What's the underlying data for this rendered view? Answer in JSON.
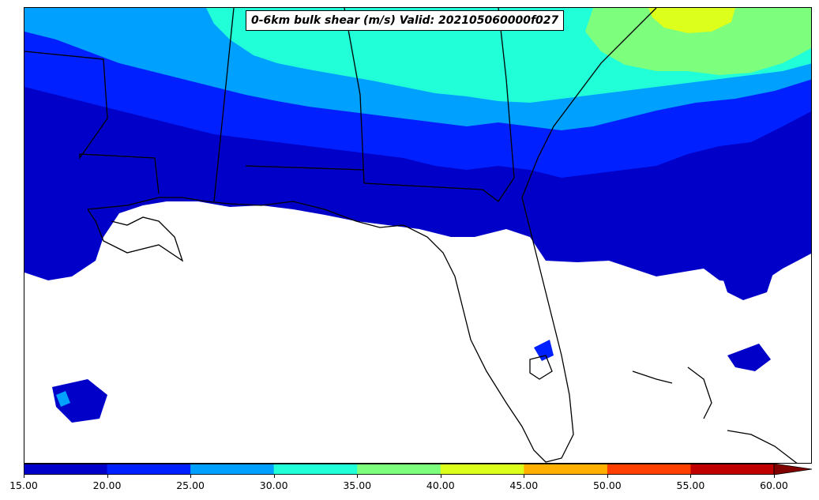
{
  "title": "0-6km bulk shear (m/s) Valid: 202105060000f027",
  "colorbar": {
    "ticks": [
      "15.00",
      "20.00",
      "25.00",
      "30.00",
      "35.00",
      "40.00",
      "45.00",
      "50.00",
      "55.00",
      "60.00"
    ],
    "colors": [
      "#0000c8",
      "#0020ff",
      "#00a0ff",
      "#20ffd8",
      "#7dff7d",
      "#dcff1c",
      "#ffb000",
      "#ff4000",
      "#c00000"
    ],
    "extend_color": "#800000"
  },
  "fill_colors": {
    "c15": "#0000c8",
    "c20": "#0020ff",
    "c25": "#00a0ff",
    "c30": "#20ffd8",
    "c35": "#7dff7d",
    "c40": "#dcff1c"
  }
}
